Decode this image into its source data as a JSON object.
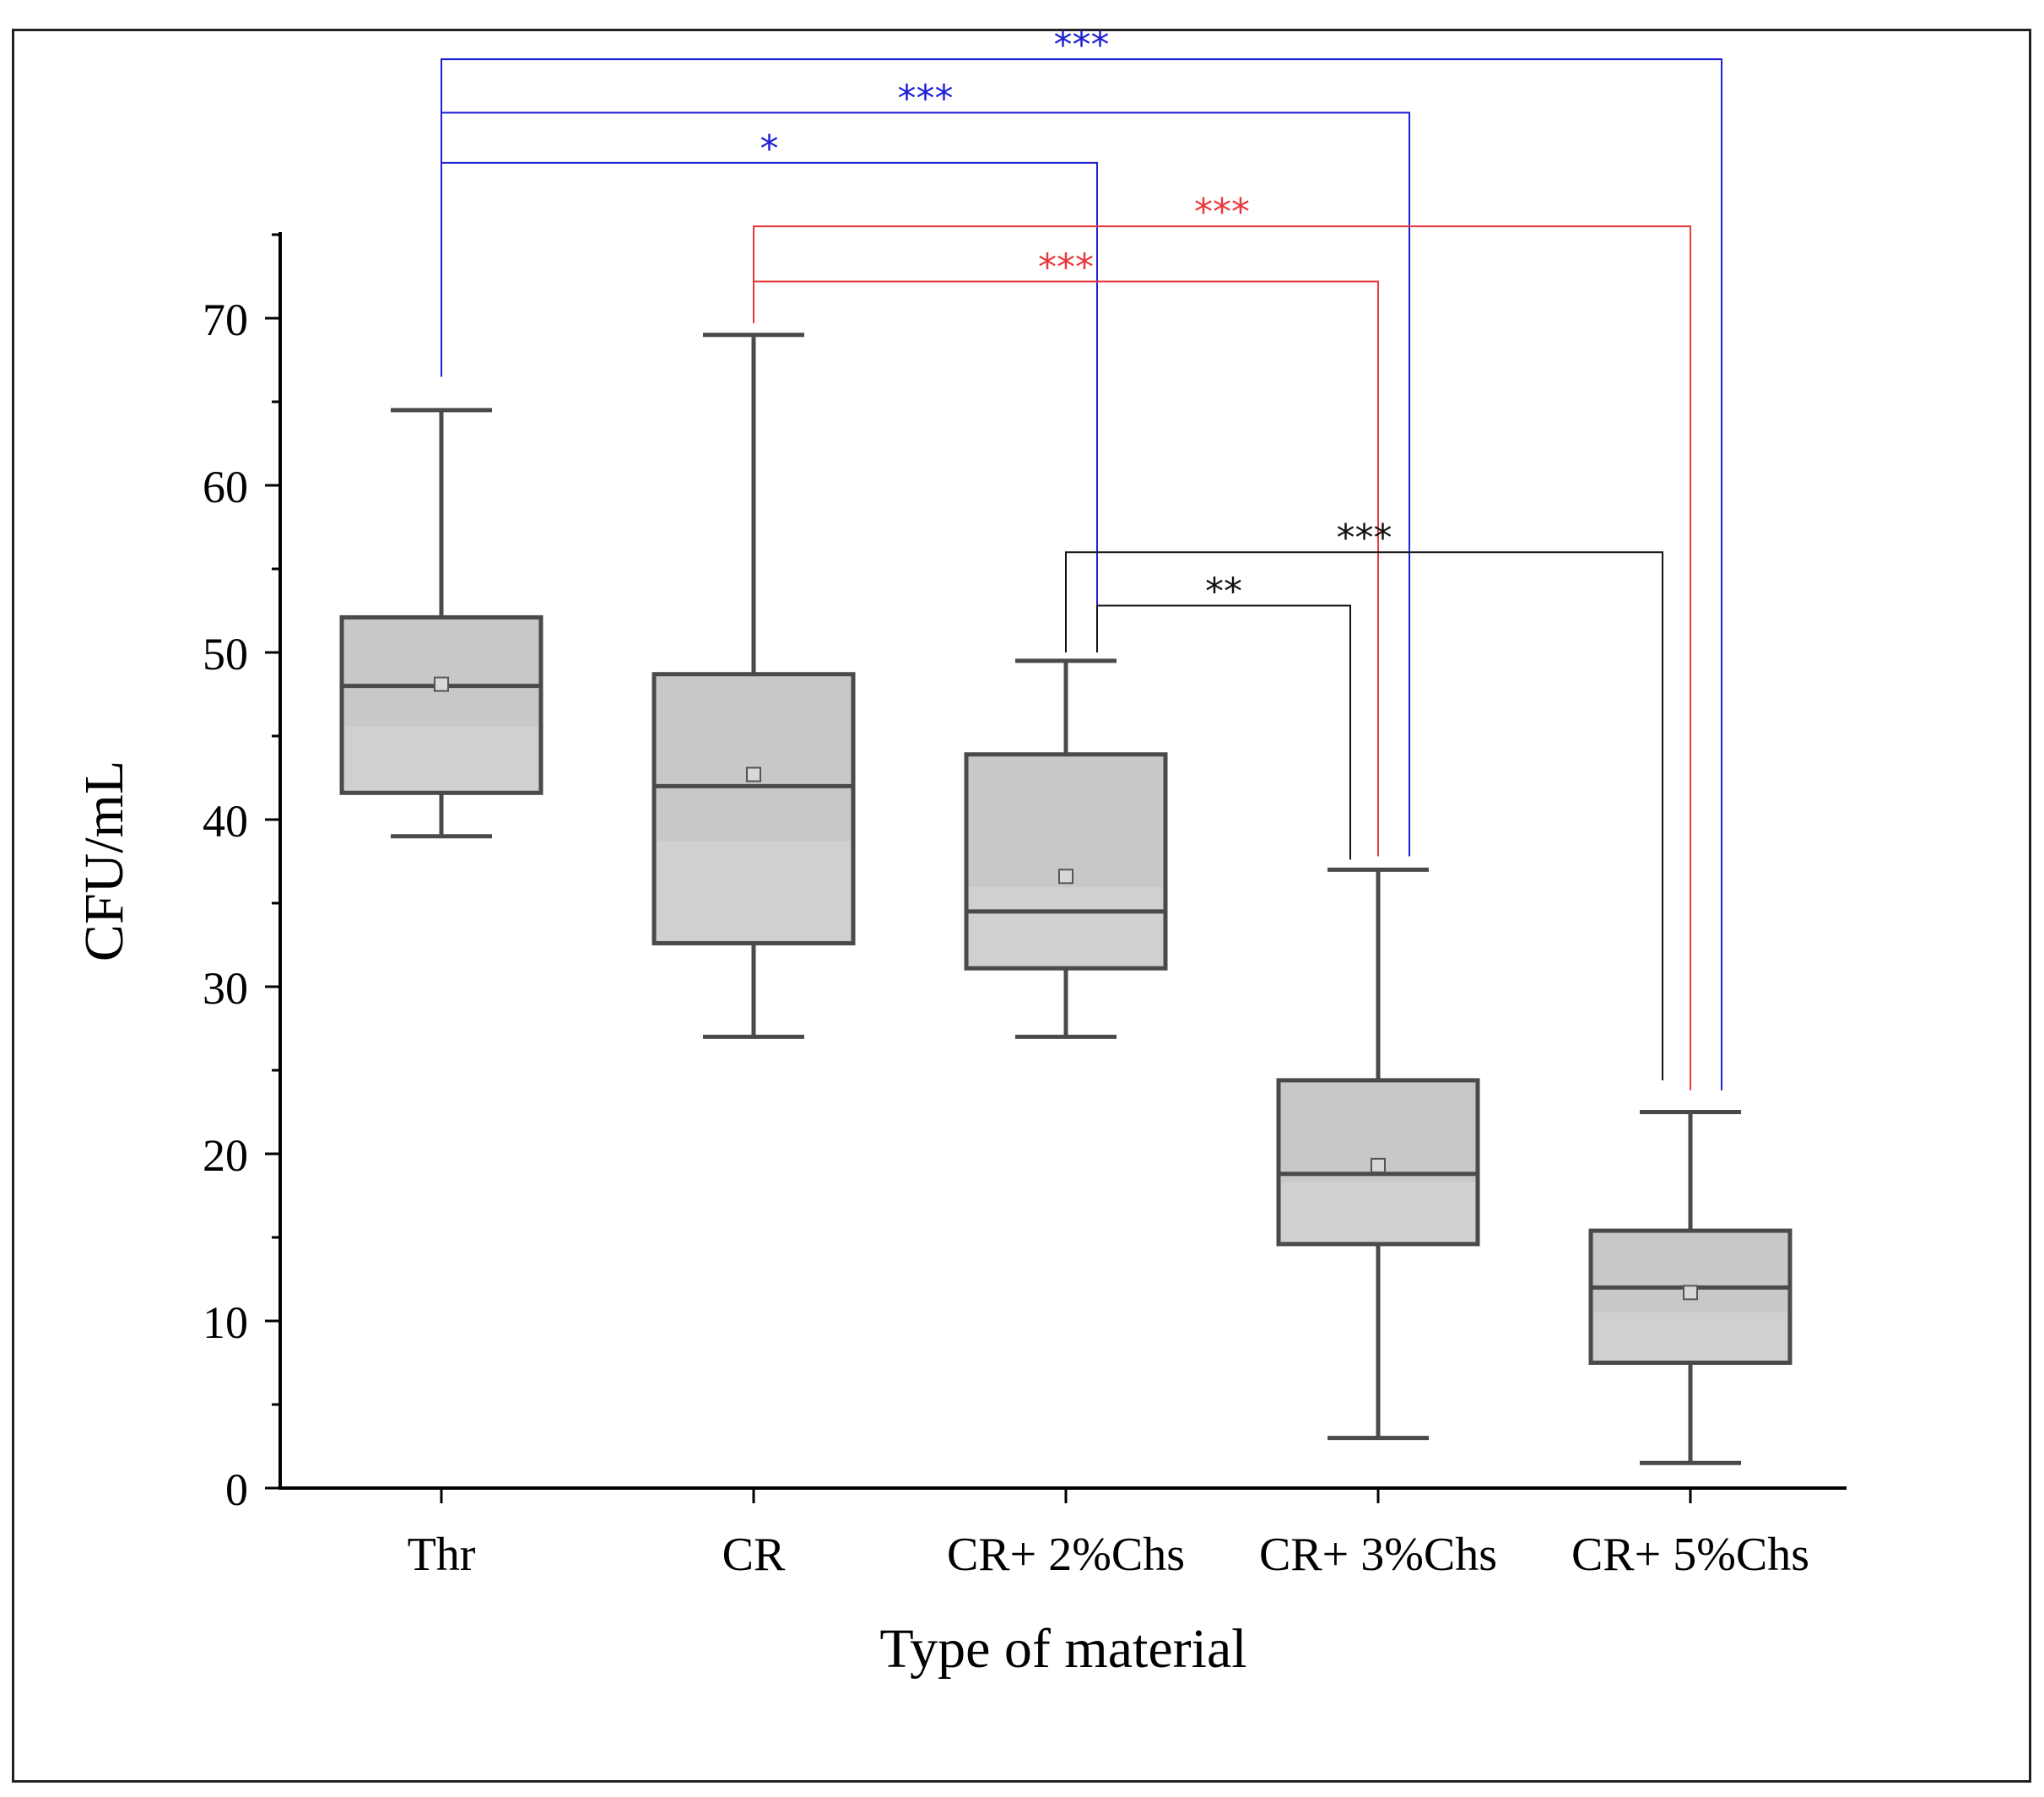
{
  "chart_data": {
    "type": "box",
    "title": "",
    "xlabel": "Type of material",
    "ylabel": "CFU/mL",
    "ylim": [
      0,
      75
    ],
    "yticks": [
      0,
      10,
      20,
      30,
      40,
      50,
      60,
      70
    ],
    "categories": [
      "Thr",
      "CR",
      "CR+ 2%Chs",
      "CR+ 3%Chs",
      "CR+ 5%Chs"
    ],
    "boxes": [
      {
        "category": "Thr",
        "whisker_low": 39,
        "q1": 41.6,
        "median": 48,
        "q3": 52.1,
        "whisker_high": 64.5,
        "mean": 48.1
      },
      {
        "category": "CR",
        "whisker_low": 27,
        "q1": 32.6,
        "median": 42,
        "q3": 48.7,
        "whisker_high": 69,
        "mean": 42.7
      },
      {
        "category": "CR+ 2%Chs",
        "whisker_low": 27,
        "q1": 31.1,
        "median": 34.5,
        "q3": 43.9,
        "whisker_high": 49.5,
        "mean": 36.6
      },
      {
        "category": "CR+ 3%Chs",
        "whisker_low": 3,
        "q1": 14.6,
        "median": 18.8,
        "q3": 24.4,
        "whisker_high": 37,
        "mean": 19.3
      },
      {
        "category": "CR+ 5%Chs",
        "whisker_low": 1.5,
        "q1": 7.5,
        "median": 12,
        "q3": 15.4,
        "whisker_high": 22.5,
        "mean": 11.7
      }
    ],
    "significance": [
      {
        "from": "Thr",
        "to": "CR+ 5%Chs",
        "label": "***",
        "color": "#1f1fd6",
        "y": 85.5,
        "from_end": 66.5,
        "to_end": 23.8
      },
      {
        "from": "Thr",
        "to": "CR+ 3%Chs",
        "label": "***",
        "color": "#1f1fd6",
        "y": 82.3,
        "from_end": 66.5,
        "to_end": 37.8
      },
      {
        "from": "Thr",
        "to": "CR+ 2%Chs",
        "label": "*",
        "color": "#1f1fd6",
        "y": 79.3,
        "from_end": 66.5,
        "to_end": 50.3
      },
      {
        "from": "CR",
        "to": "CR+ 5%Chs",
        "label": "***",
        "color": "#e8383d",
        "y": 75.5,
        "from_end": 69.7,
        "to_end": 23.8
      },
      {
        "from": "CR",
        "to": "CR+ 3%Chs",
        "label": "***",
        "color": "#e8383d",
        "y": 72.2,
        "from_end": 69.7,
        "to_end": 37.8
      },
      {
        "from": "CR+ 2%Chs",
        "to": "CR+ 5%Chs",
        "label": "***",
        "color": "#111111",
        "y": 56,
        "from_end": 50,
        "to_end": 24.4
      },
      {
        "from": "CR+ 2%Chs",
        "to": "CR+ 3%Chs",
        "label": "**",
        "color": "#111111",
        "y": 52.8,
        "from_end": 50,
        "to_end": 37.6
      }
    ],
    "box_fill": "#c8c8c8",
    "box_stroke": "#4a4a4a",
    "grid": false
  }
}
